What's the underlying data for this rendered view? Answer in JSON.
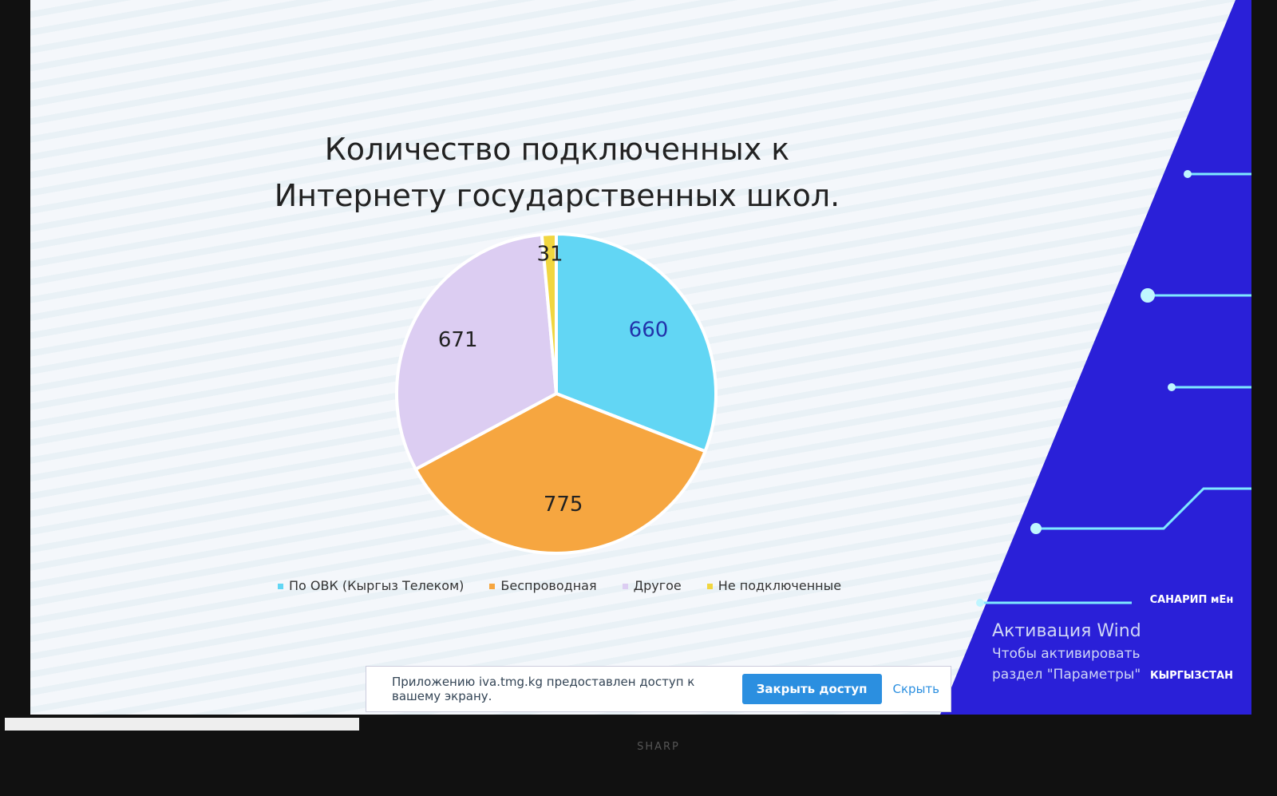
{
  "chart_data": {
    "type": "pie",
    "title": "Количество подключенных к Интернету государственных школ.",
    "categories": [
      "По ОВК (Кыргыз Телеком)",
      "Беспроводная",
      "Другое",
      "Не подключенные"
    ],
    "values": [
      660,
      775,
      671,
      31
    ],
    "colors": [
      "#62d6f4",
      "#f6a640",
      "#dccdf2",
      "#f1d640"
    ],
    "legend": "bottom"
  },
  "notification": {
    "message": "Приложению iva.tmg.kg предоставлен доступ к вашему экрану.",
    "primary_button": "Закрыть доступ",
    "secondary_button": "Скрыть"
  },
  "watermark": {
    "title": "Активация Wind",
    "line1": "Чтобы активировать",
    "line2": "раздел \"Параметры\""
  },
  "logo": {
    "top": "САНАРИП мЕн",
    "bottom": "КЫРГЫЗСТАН"
  },
  "brand": "SHARP"
}
